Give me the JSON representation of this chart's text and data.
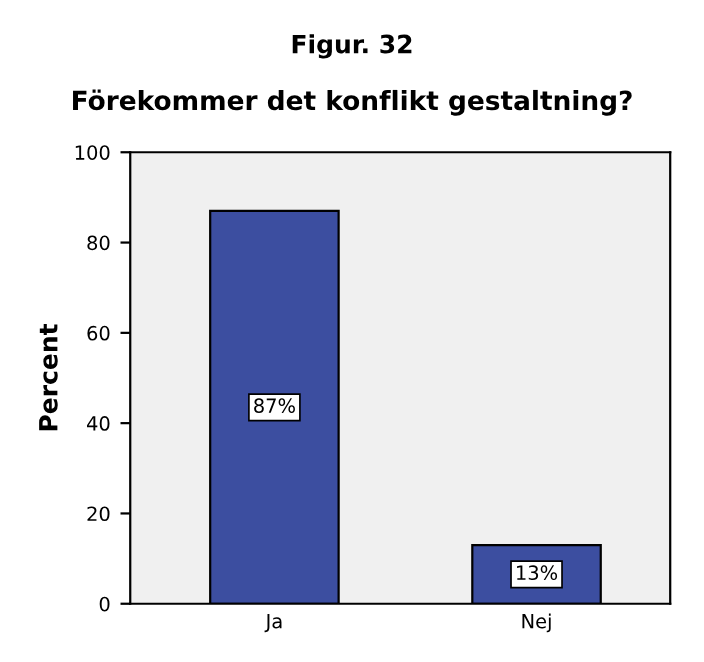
{
  "chart_data": {
    "type": "bar",
    "title": "Figur. 32",
    "subtitle": "Förekommer det konflikt gestaltning?",
    "ylabel": "Percent",
    "categories": [
      "Ja",
      "Nej"
    ],
    "values": [
      87,
      13
    ],
    "value_labels": [
      "87%",
      "13%"
    ],
    "color": "#3c4ea0",
    "ylim": [
      0,
      100
    ],
    "yticks": [
      0,
      20,
      40,
      60,
      80,
      100
    ],
    "grid": false,
    "legend": false
  }
}
